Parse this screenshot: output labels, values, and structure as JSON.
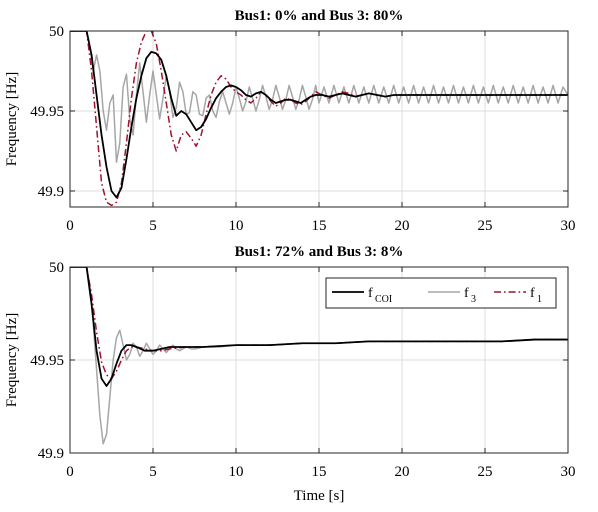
{
  "chart_data": [
    {
      "type": "line",
      "title": "Bus1: 0% and Bus 3: 80%",
      "xlabel": "",
      "ylabel": "Frequency [Hz]",
      "xlim": [
        0,
        30
      ],
      "ylim": [
        49.89,
        50
      ],
      "xticks": [
        0,
        5,
        10,
        15,
        20,
        25,
        30
      ],
      "yticks": [
        49.9,
        49.95,
        50
      ],
      "ytick_labels": [
        "49.9",
        "49.95",
        "50"
      ],
      "grid": true,
      "legend": null,
      "series": [
        {
          "key": "f3",
          "color": "#a6a6a6",
          "dash": "solid",
          "x": [
            0,
            1.0,
            1.2,
            1.4,
            1.6,
            1.8,
            2.0,
            2.2,
            2.4,
            2.6,
            2.8,
            3.0,
            3.2,
            3.4,
            3.6,
            3.8,
            4.0,
            4.2,
            4.4,
            4.6,
            4.8,
            5.0,
            5.2,
            5.4,
            5.6,
            5.8,
            6.0,
            6.2,
            6.4,
            6.6,
            6.8,
            7.0,
            7.2,
            7.4,
            7.6,
            7.8,
            8.0,
            8.2,
            8.4,
            8.6,
            8.8,
            9.0,
            9.2,
            9.4,
            9.6,
            9.8,
            10.0,
            10.2,
            10.4,
            10.6,
            10.8,
            11.0,
            11.2,
            11.4,
            11.6,
            11.8,
            12.0,
            12.2,
            12.4,
            12.6,
            12.8,
            13.0,
            13.2,
            13.4,
            13.6,
            13.8,
            14.0,
            14.2,
            14.4,
            14.6,
            14.8,
            15.0,
            15.3,
            15.6,
            15.9,
            16.2,
            16.5,
            16.8,
            17.1,
            17.4,
            17.7,
            18.0,
            18.3,
            18.6,
            18.9,
            19.2,
            19.5,
            19.8,
            20.1,
            20.4,
            20.7,
            21.0,
            21.3,
            21.6,
            21.9,
            22.2,
            22.5,
            22.8,
            23.1,
            23.4,
            23.7,
            24.0,
            24.3,
            24.6,
            24.9,
            25.2,
            25.5,
            25.8,
            26.1,
            26.4,
            26.7,
            27.0,
            27.3,
            27.6,
            27.9,
            28.2,
            28.5,
            28.8,
            29.1,
            29.4,
            29.7,
            30.0
          ],
          "y": [
            50.0,
            50.0,
            49.99,
            49.975,
            49.985,
            49.975,
            49.95,
            49.938,
            49.955,
            49.96,
            49.918,
            49.93,
            49.965,
            49.973,
            49.945,
            49.935,
            49.96,
            49.98,
            49.962,
            49.943,
            49.96,
            49.975,
            49.96,
            49.945,
            49.958,
            49.972,
            49.962,
            49.946,
            49.952,
            49.968,
            49.962,
            49.948,
            49.949,
            49.962,
            49.96,
            49.948,
            49.947,
            49.958,
            49.96,
            49.95,
            49.946,
            49.956,
            49.962,
            49.955,
            49.948,
            49.955,
            49.965,
            49.958,
            49.95,
            49.956,
            49.965,
            49.958,
            49.95,
            49.957,
            49.966,
            49.959,
            49.951,
            49.957,
            49.966,
            49.959,
            49.951,
            49.957,
            49.966,
            49.959,
            49.951,
            49.957,
            49.966,
            49.959,
            49.951,
            49.957,
            49.966,
            49.955,
            49.965,
            49.955,
            49.966,
            49.955,
            49.965,
            49.955,
            49.966,
            49.955,
            49.965,
            49.955,
            49.966,
            49.955,
            49.965,
            49.955,
            49.966,
            49.955,
            49.965,
            49.955,
            49.966,
            49.955,
            49.965,
            49.955,
            49.966,
            49.955,
            49.965,
            49.955,
            49.966,
            49.955,
            49.965,
            49.955,
            49.966,
            49.955,
            49.965,
            49.955,
            49.966,
            49.955,
            49.965,
            49.955,
            49.966,
            49.955,
            49.965,
            49.955,
            49.966,
            49.955,
            49.965,
            49.955,
            49.966,
            49.955,
            49.965,
            49.96
          ]
        },
        {
          "key": "f1",
          "color": "#a0122d",
          "dash": "dashdot",
          "x": [
            0,
            1.0,
            1.3,
            1.6,
            1.9,
            2.2,
            2.5,
            2.8,
            3.1,
            3.4,
            3.7,
            4.0,
            4.3,
            4.6,
            4.9,
            5.2,
            5.5,
            5.8,
            6.1,
            6.4,
            6.7,
            7.0,
            7.3,
            7.6,
            7.9,
            8.2,
            8.5,
            8.8,
            9.1,
            9.4,
            9.7,
            10.0,
            10.3,
            10.6,
            10.9,
            11.2,
            11.5,
            11.8,
            12.1,
            12.4,
            12.7,
            13.0,
            13.3,
            13.6,
            13.9,
            14.2,
            14.5,
            14.8,
            15.2,
            15.6,
            16.0,
            16.4,
            16.8,
            17.2,
            17.6,
            18.0,
            18.5,
            19.0,
            19.5,
            20.0,
            21.0,
            22.0,
            23.0,
            24.0,
            25.0,
            26.0,
            27.0,
            28.0,
            29.0,
            30.0
          ],
          "y": [
            50.0,
            50.0,
            49.975,
            49.94,
            49.905,
            49.893,
            49.891,
            49.893,
            49.905,
            49.93,
            49.958,
            49.98,
            49.993,
            50.0,
            50.0,
            49.992,
            49.975,
            49.955,
            49.935,
            49.925,
            49.935,
            49.937,
            49.933,
            49.928,
            49.935,
            49.948,
            49.96,
            49.968,
            49.972,
            49.97,
            49.965,
            49.962,
            49.96,
            49.957,
            49.955,
            49.958,
            49.962,
            49.96,
            49.956,
            49.953,
            49.955,
            49.958,
            49.957,
            49.955,
            49.954,
            49.956,
            49.959,
            49.962,
            49.96,
            49.958,
            49.96,
            49.962,
            49.961,
            49.959,
            49.96,
            49.961,
            49.96,
            49.959,
            49.96,
            49.96,
            49.96,
            49.96,
            49.96,
            49.96,
            49.96,
            49.96,
            49.96,
            49.96,
            49.96,
            49.96
          ]
        },
        {
          "key": "fcoi",
          "color": "#000000",
          "dash": "solid",
          "x": [
            0,
            1.0,
            1.3,
            1.6,
            1.9,
            2.2,
            2.5,
            2.8,
            3.1,
            3.4,
            3.7,
            4.0,
            4.3,
            4.6,
            4.9,
            5.2,
            5.5,
            5.8,
            6.1,
            6.4,
            6.7,
            7.0,
            7.3,
            7.6,
            7.9,
            8.2,
            8.5,
            8.8,
            9.1,
            9.4,
            9.7,
            10.0,
            10.3,
            10.6,
            10.9,
            11.2,
            11.5,
            11.8,
            12.1,
            12.4,
            12.7,
            13.0,
            13.3,
            13.6,
            13.9,
            14.2,
            14.5,
            14.8,
            15.2,
            15.6,
            16.0,
            16.4,
            16.8,
            17.2,
            17.6,
            18.0,
            18.5,
            19.0,
            19.5,
            20.0,
            21.0,
            22.0,
            23.0,
            24.0,
            25.0,
            26.0,
            27.0,
            28.0,
            29.0,
            30.0
          ],
          "y": [
            50.0,
            50.0,
            49.985,
            49.96,
            49.935,
            49.915,
            49.9,
            49.896,
            49.902,
            49.92,
            49.94,
            49.958,
            49.972,
            49.983,
            49.987,
            49.986,
            49.982,
            49.972,
            49.958,
            49.947,
            49.95,
            49.948,
            49.943,
            49.938,
            49.94,
            49.945,
            49.952,
            49.958,
            49.962,
            49.965,
            49.966,
            49.965,
            49.963,
            49.96,
            49.959,
            49.961,
            49.962,
            49.96,
            49.957,
            49.955,
            49.956,
            49.957,
            49.957,
            49.956,
            49.955,
            49.957,
            49.959,
            49.96,
            49.96,
            49.959,
            49.96,
            49.961,
            49.96,
            49.959,
            49.96,
            49.961,
            49.96,
            49.959,
            49.96,
            49.96,
            49.96,
            49.96,
            49.96,
            49.96,
            49.96,
            49.96,
            49.96,
            49.96,
            49.96,
            49.96
          ]
        }
      ]
    },
    {
      "type": "line",
      "title": "Bus1: 72% and Bus 3: 8%",
      "xlabel": "Time [s]",
      "ylabel": "Frequency [Hz]",
      "xlim": [
        0,
        30
      ],
      "ylim": [
        49.9,
        50
      ],
      "xticks": [
        0,
        5,
        10,
        15,
        20,
        25,
        30
      ],
      "yticks": [
        49.9,
        49.95,
        50
      ],
      "ytick_labels": [
        "49.9",
        "49.95",
        "50"
      ],
      "grid": true,
      "legend": "top-right",
      "legend_entries": [
        {
          "key": "fcoi",
          "label": "f",
          "sub": "COI"
        },
        {
          "key": "f3",
          "label": "f",
          "sub": "3"
        },
        {
          "key": "f1",
          "label": "f",
          "sub": "1"
        }
      ],
      "series": [
        {
          "key": "f3",
          "color": "#a6a6a6",
          "dash": "solid",
          "x": [
            0,
            1.0,
            1.2,
            1.4,
            1.6,
            1.8,
            2.0,
            2.2,
            2.4,
            2.6,
            2.8,
            3.0,
            3.2,
            3.4,
            3.6,
            3.8,
            4.0,
            4.2,
            4.4,
            4.6,
            4.8,
            5.0,
            5.2,
            5.4,
            5.6,
            5.8,
            6.0,
            6.2,
            6.4,
            6.6,
            6.8,
            7.0,
            7.3,
            7.6,
            8.0,
            8.5,
            9.0,
            10.0,
            12.0,
            14.0,
            16.0,
            18.0,
            20.0,
            22.0,
            24.0,
            26.0,
            28.0,
            30.0
          ],
          "y": [
            50.0,
            50.0,
            49.99,
            49.97,
            49.945,
            49.92,
            49.905,
            49.91,
            49.93,
            49.95,
            49.962,
            49.966,
            49.958,
            49.95,
            49.953,
            49.959,
            49.957,
            49.952,
            49.955,
            49.959,
            49.956,
            49.953,
            49.955,
            49.958,
            49.956,
            49.954,
            49.956,
            49.958,
            49.956,
            49.955,
            49.956,
            49.957,
            49.956,
            49.956,
            49.957,
            49.957,
            49.957,
            49.958,
            49.958,
            49.959,
            49.959,
            49.96,
            49.96,
            49.96,
            49.96,
            49.96,
            49.961,
            49.961
          ]
        },
        {
          "key": "f1",
          "color": "#a0122d",
          "dash": "dashdot",
          "x": [
            0,
            1.0,
            1.3,
            1.6,
            1.9,
            2.2,
            2.5,
            2.8,
            3.1,
            3.4,
            3.7,
            4.0,
            4.5,
            5.0,
            5.5,
            6.0,
            7.0,
            8.0,
            10.0,
            12.0,
            14.0,
            16.0,
            18.0,
            20.0,
            22.0,
            24.0,
            26.0,
            28.0,
            30.0
          ],
          "y": [
            50.0,
            50.0,
            49.985,
            49.965,
            49.949,
            49.942,
            49.94,
            49.944,
            49.95,
            49.955,
            49.957,
            49.957,
            49.956,
            49.955,
            49.955,
            49.956,
            49.957,
            49.957,
            49.958,
            49.958,
            49.959,
            49.959,
            49.96,
            49.96,
            49.96,
            49.96,
            49.96,
            49.961,
            49.961
          ]
        },
        {
          "key": "fcoi",
          "color": "#000000",
          "dash": "solid",
          "x": [
            0,
            1.0,
            1.3,
            1.6,
            1.9,
            2.2,
            2.5,
            2.8,
            3.1,
            3.4,
            3.7,
            4.0,
            4.5,
            5.0,
            5.5,
            6.0,
            7.0,
            8.0,
            10.0,
            12.0,
            14.0,
            16.0,
            18.0,
            20.0,
            22.0,
            24.0,
            26.0,
            28.0,
            30.0
          ],
          "y": [
            50.0,
            50.0,
            49.98,
            49.955,
            49.94,
            49.936,
            49.94,
            49.948,
            49.955,
            49.958,
            49.958,
            49.957,
            49.955,
            49.955,
            49.956,
            49.957,
            49.957,
            49.957,
            49.958,
            49.958,
            49.959,
            49.959,
            49.96,
            49.96,
            49.96,
            49.96,
            49.96,
            49.961,
            49.961
          ]
        }
      ]
    }
  ]
}
